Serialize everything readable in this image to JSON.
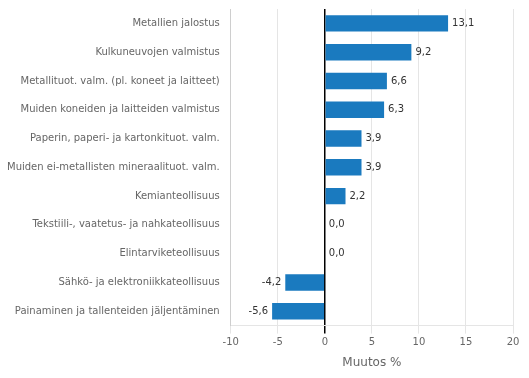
{
  "chart_data": {
    "type": "bar",
    "orientation": "horizontal",
    "categories": [
      "Painaminen ja tallenteiden jäljentäminen",
      "Sähkö- ja elektroniikkateollisuus",
      "Elintarviketeollisuus",
      "Tekstiili-, vaatetus- ja nahkateollisuus",
      "Kemianteollisuus",
      "Muiden ei-metallisten mineraalituot. valm.",
      "Paperin, paperi- ja kartonkituot. valm.",
      "Muiden koneiden ja laitteiden valmistus",
      "Metallituot. valm. (pl. koneet ja laitteet)",
      "Kulkuneuvojen valmistus",
      "Metallien jalostus"
    ],
    "values": [
      -5.6,
      -4.2,
      0.0,
      0.0,
      2.2,
      3.9,
      3.9,
      6.3,
      6.6,
      9.2,
      13.1
    ],
    "value_labels": [
      "-5,6",
      "-4,2",
      "0,0",
      "0,0",
      "2,2",
      "3,9",
      "3,9",
      "6,3",
      "6,6",
      "9,2",
      "13,1"
    ],
    "data_labels": true,
    "color": "#1a7abf",
    "xlabel": "Muutos %",
    "xlim": [
      -10,
      20
    ],
    "xticks": [
      -10,
      -5,
      0,
      5,
      10,
      15,
      20
    ],
    "grid": true
  }
}
